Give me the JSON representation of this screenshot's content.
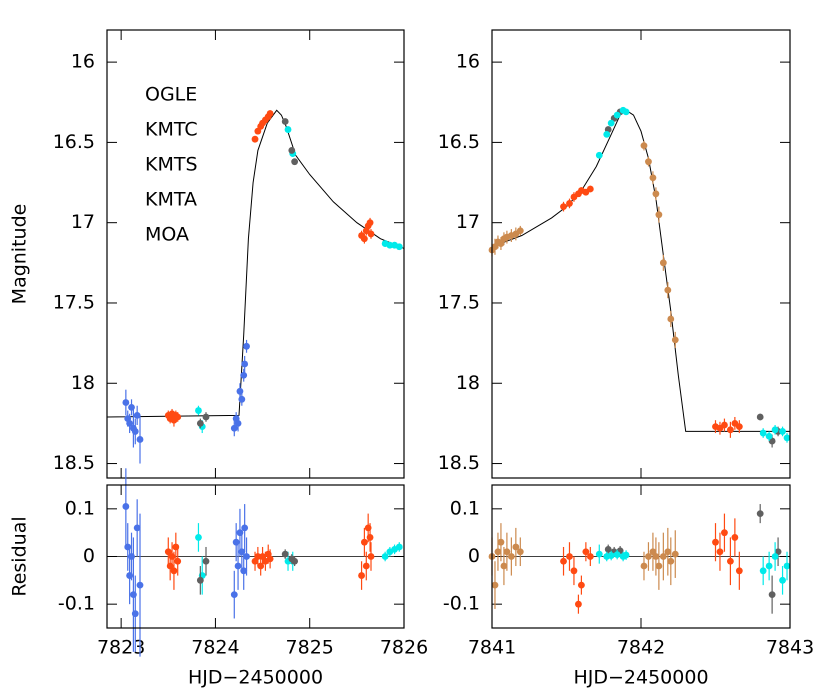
{
  "chart_data": [
    {
      "type": "scatter",
      "ylabel": "Magnitude",
      "xlim": [
        7822.85,
        7826
      ],
      "xticks": [
        7823,
        7824,
        7825,
        7826
      ],
      "xtick_labels": false,
      "ylim": [
        18.59,
        15.8
      ],
      "yticks": [
        16,
        16.5,
        17,
        17.5,
        18,
        18.5
      ],
      "legend": {
        "position": "upper left",
        "entries": [
          {
            "name": "OGLE",
            "color": "#00eaea"
          },
          {
            "name": "KMTC",
            "color": "#606060"
          },
          {
            "name": "KMTS",
            "color": "#ff4a12"
          },
          {
            "name": "KMTA",
            "color": "#4a72e8"
          },
          {
            "name": "MOA",
            "color": "#cc8a4e"
          }
        ]
      },
      "model": {
        "color": "#000000",
        "x": [
          7822.85,
          7824.25,
          7824.3,
          7824.35,
          7824.4,
          7824.45,
          7824.55,
          7824.65,
          7824.7,
          7824.75,
          7824.85,
          7825.0,
          7825.25,
          7825.5,
          7825.75,
          7826
        ],
        "values": [
          18.21,
          18.2,
          17.7,
          17.1,
          16.75,
          16.55,
          16.38,
          16.3,
          16.33,
          16.4,
          16.58,
          16.7,
          16.87,
          17.0,
          17.1,
          17.16
        ]
      },
      "series": [
        {
          "color": "#00eaea",
          "x": [
            7823.82,
            7823.86,
            7824.77,
            7824.82,
            7825.8,
            7825.85,
            7825.9,
            7825.95
          ],
          "values": [
            18.17,
            18.27,
            16.42,
            16.57,
            17.13,
            17.14,
            17.14,
            17.15
          ],
          "errors": [
            0.03,
            0.04,
            0.02,
            0.02,
            0.02,
            0.02,
            0.02,
            0.02
          ]
        },
        {
          "color": "#606060",
          "x": [
            7823.84,
            7823.9,
            7824.74,
            7824.81,
            7824.84
          ],
          "values": [
            18.25,
            18.21,
            16.37,
            16.55,
            16.62
          ],
          "errors": [
            0.03,
            0.03,
            0.01,
            0.01,
            0.01
          ]
        },
        {
          "color": "#ff4a12",
          "x": [
            7823.5,
            7823.52,
            7823.54,
            7823.56,
            7823.58,
            7823.6,
            7824.42,
            7824.45,
            7824.48,
            7824.5,
            7824.53,
            7824.56,
            7824.58,
            7825.55,
            7825.58,
            7825.6,
            7825.62,
            7825.64,
            7825.65
          ],
          "values": [
            18.2,
            18.22,
            18.19,
            18.23,
            18.2,
            18.21,
            16.48,
            16.43,
            16.4,
            16.38,
            16.36,
            16.34,
            16.32,
            17.08,
            17.1,
            17.05,
            17.02,
            17.0,
            17.07
          ],
          "errors": [
            0.03,
            0.03,
            0.03,
            0.04,
            0.03,
            0.03,
            0.02,
            0.02,
            0.02,
            0.02,
            0.02,
            0.02,
            0.02,
            0.03,
            0.03,
            0.03,
            0.03,
            0.03,
            0.03
          ]
        },
        {
          "color": "#4a72e8",
          "x": [
            7823.05,
            7823.07,
            7823.09,
            7823.11,
            7823.13,
            7823.15,
            7823.17,
            7823.2,
            7824.2,
            7824.22,
            7824.24,
            7824.26,
            7824.28,
            7824.3,
            7824.31,
            7824.33
          ],
          "values": [
            18.12,
            18.22,
            18.25,
            18.15,
            18.28,
            18.3,
            18.2,
            18.35,
            18.28,
            18.22,
            18.25,
            18.05,
            18.1,
            17.95,
            17.88,
            17.77
          ],
          "errors": [
            0.08,
            0.05,
            0.06,
            0.05,
            0.12,
            0.08,
            0.06,
            0.15,
            0.05,
            0.04,
            0.05,
            0.05,
            0.04,
            0.04,
            0.05,
            0.04
          ]
        }
      ]
    },
    {
      "type": "scatter",
      "xlim": [
        7841,
        7843
      ],
      "xticks": [
        7841,
        7842,
        7843
      ],
      "xtick_labels": false,
      "ylim": [
        18.59,
        15.8
      ],
      "yticks": [
        16,
        16.5,
        17,
        17.5,
        18,
        18.5
      ],
      "model": {
        "color": "#000000",
        "x": [
          7841,
          7841.2,
          7841.4,
          7841.5,
          7841.6,
          7841.7,
          7841.8,
          7841.86,
          7841.9,
          7841.95,
          7842.0,
          7842.05,
          7842.1,
          7842.15,
          7842.2,
          7842.25,
          7842.3,
          7843
        ],
        "values": [
          17.15,
          17.08,
          16.97,
          16.9,
          16.8,
          16.65,
          16.45,
          16.33,
          16.3,
          16.33,
          16.43,
          16.6,
          16.85,
          17.2,
          17.55,
          17.95,
          18.3,
          18.3
        ]
      },
      "series": [
        {
          "color": "#cc8a4e",
          "x": [
            7841.0,
            7841.02,
            7841.04,
            7841.06,
            7841.08,
            7841.1,
            7841.13,
            7841.16,
            7841.19,
            7842.02,
            7842.05,
            7842.08,
            7842.1,
            7842.12,
            7842.15,
            7842.18,
            7842.2,
            7842.23
          ],
          "values": [
            17.17,
            17.15,
            17.12,
            17.13,
            17.1,
            17.09,
            17.08,
            17.07,
            17.05,
            16.52,
            16.62,
            16.72,
            16.82,
            16.95,
            17.25,
            17.42,
            17.6,
            17.73
          ],
          "errors": [
            0.04,
            0.05,
            0.04,
            0.04,
            0.04,
            0.04,
            0.04,
            0.04,
            0.03,
            0.03,
            0.03,
            0.04,
            0.04,
            0.05,
            0.05,
            0.05,
            0.05,
            0.05
          ]
        },
        {
          "color": "#ff4a12",
          "x": [
            7841.48,
            7841.52,
            7841.55,
            7841.58,
            7841.6,
            7841.63,
            7841.66,
            7842.5,
            7842.53,
            7842.56,
            7842.6,
            7842.63,
            7842.66
          ],
          "values": [
            16.9,
            16.88,
            16.84,
            16.82,
            16.8,
            16.81,
            16.79,
            18.27,
            18.28,
            18.26,
            18.29,
            18.25,
            18.27
          ],
          "errors": [
            0.03,
            0.03,
            0.03,
            0.02,
            0.02,
            0.02,
            0.02,
            0.04,
            0.04,
            0.04,
            0.05,
            0.04,
            0.04
          ]
        },
        {
          "color": "#606060",
          "x": [
            7841.78,
            7841.82,
            7841.86,
            7842.8,
            7842.88,
            7842.92
          ],
          "values": [
            16.42,
            16.35,
            16.31,
            18.21,
            18.36,
            18.3
          ],
          "errors": [
            0.01,
            0.01,
            0.01,
            0.02,
            0.04,
            0.03
          ]
        },
        {
          "color": "#00eaea",
          "x": [
            7841.72,
            7841.77,
            7841.8,
            7841.84,
            7841.88,
            7841.9,
            7842.82,
            7842.86,
            7842.9,
            7842.95,
            7842.98
          ],
          "values": [
            16.58,
            16.45,
            16.38,
            16.33,
            16.3,
            16.31,
            18.31,
            18.33,
            18.29,
            18.3,
            18.34
          ],
          "errors": [
            0.02,
            0.01,
            0.01,
            0.01,
            0.01,
            0.01,
            0.03,
            0.03,
            0.03,
            0.03,
            0.03
          ]
        }
      ]
    },
    {
      "type": "scatter",
      "ylabel": "Residual",
      "xlabel": "HJD−2450000",
      "xlim": [
        7822.85,
        7826
      ],
      "xticks": [
        7823,
        7824,
        7825,
        7826
      ],
      "xtick_labels": true,
      "ylim": [
        -0.15,
        0.15
      ],
      "yticks": [
        0.1,
        0,
        -0.1
      ],
      "zero_line": 0,
      "series": [
        {
          "color": "#00eaea",
          "x": [
            7823.82,
            7823.86,
            7824.77,
            7824.82,
            7825.8,
            7825.85,
            7825.9,
            7825.95
          ],
          "values": [
            0.04,
            -0.04,
            -0.01,
            -0.01,
            0.0,
            0.01,
            0.015,
            0.02
          ],
          "errors": [
            0.03,
            0.04,
            0.02,
            0.02,
            0.01,
            0.01,
            0.01,
            0.01
          ]
        },
        {
          "color": "#606060",
          "x": [
            7823.84,
            7823.9,
            7824.74,
            7824.81,
            7824.84
          ],
          "values": [
            -0.05,
            -0.01,
            0.005,
            -0.005,
            -0.01
          ],
          "errors": [
            0.03,
            0.03,
            0.01,
            0.01,
            0.01
          ]
        },
        {
          "color": "#ff4a12",
          "x": [
            7823.5,
            7823.52,
            7823.54,
            7823.56,
            7823.58,
            7823.6,
            7824.42,
            7824.45,
            7824.48,
            7824.5,
            7824.53,
            7824.56,
            7824.58,
            7825.55,
            7825.58,
            7825.6,
            7825.62,
            7825.64,
            7825.65
          ],
          "values": [
            0.01,
            -0.02,
            0.0,
            -0.03,
            0.02,
            -0.01,
            -0.01,
            0.0,
            -0.02,
            0.0,
            -0.01,
            0.005,
            -0.005,
            -0.04,
            0.03,
            -0.02,
            0.06,
            0.04,
            0.0
          ],
          "errors": [
            0.03,
            0.03,
            0.03,
            0.04,
            0.03,
            0.03,
            0.02,
            0.02,
            0.02,
            0.02,
            0.02,
            0.02,
            0.02,
            0.03,
            0.03,
            0.03,
            0.03,
            0.03,
            0.03
          ]
        },
        {
          "color": "#4a72e8",
          "x": [
            7823.05,
            7823.07,
            7823.09,
            7823.11,
            7823.13,
            7823.15,
            7823.17,
            7823.2,
            7824.2,
            7824.22,
            7824.24,
            7824.26,
            7824.28,
            7824.3,
            7824.31,
            7824.33
          ],
          "values": [
            0.105,
            0.02,
            -0.04,
            0.0,
            -0.08,
            -0.12,
            0.06,
            -0.06,
            -0.08,
            0.03,
            -0.02,
            0.05,
            0.01,
            -0.03,
            0.06,
            0.0
          ],
          "errors": [
            0.08,
            0.05,
            0.06,
            0.05,
            0.12,
            0.08,
            0.06,
            0.15,
            0.05,
            0.04,
            0.05,
            0.05,
            0.04,
            0.04,
            0.05,
            0.04
          ]
        }
      ]
    },
    {
      "type": "scatter",
      "xlabel": "HJD−2450000",
      "xlim": [
        7841,
        7843
      ],
      "xticks": [
        7841,
        7842,
        7843
      ],
      "xtick_labels": true,
      "ylim": [
        -0.15,
        0.15
      ],
      "yticks": [
        0.1,
        0,
        -0.1
      ],
      "zero_line": 0,
      "series": [
        {
          "color": "#cc8a4e",
          "x": [
            7841.0,
            7841.02,
            7841.04,
            7841.06,
            7841.08,
            7841.1,
            7841.13,
            7841.16,
            7841.19,
            7842.02,
            7842.05,
            7842.08,
            7842.1,
            7842.12,
            7842.15,
            7842.18,
            7842.2,
            7842.23
          ],
          "values": [
            0.0,
            -0.06,
            0.01,
            0.03,
            -0.02,
            0.01,
            0.0,
            0.02,
            0.01,
            -0.02,
            0.0,
            0.01,
            0.0,
            -0.02,
            0.0,
            0.01,
            -0.01,
            0.005
          ],
          "errors": [
            0.04,
            0.05,
            0.04,
            0.04,
            0.04,
            0.04,
            0.04,
            0.04,
            0.03,
            0.03,
            0.03,
            0.04,
            0.04,
            0.05,
            0.05,
            0.05,
            0.05,
            0.05
          ]
        },
        {
          "color": "#ff4a12",
          "x": [
            7841.48,
            7841.52,
            7841.55,
            7841.58,
            7841.6,
            7841.63,
            7841.66,
            7842.5,
            7842.53,
            7842.56,
            7842.6,
            7842.63,
            7842.66
          ],
          "values": [
            -0.01,
            0.0,
            -0.03,
            -0.1,
            -0.06,
            0.01,
            0.0,
            0.03,
            0.01,
            0.05,
            -0.01,
            0.04,
            -0.03
          ],
          "errors": [
            0.03,
            0.03,
            0.03,
            0.02,
            0.02,
            0.02,
            0.02,
            0.04,
            0.04,
            0.04,
            0.05,
            0.04,
            0.04
          ]
        },
        {
          "color": "#606060",
          "x": [
            7841.78,
            7841.82,
            7841.86,
            7842.8,
            7842.88,
            7842.92
          ],
          "values": [
            0.015,
            0.01,
            0.012,
            0.09,
            -0.08,
            0.01
          ],
          "errors": [
            0.01,
            0.01,
            0.01,
            0.02,
            0.04,
            0.03
          ]
        },
        {
          "color": "#00eaea",
          "x": [
            7841.72,
            7841.77,
            7841.8,
            7841.84,
            7841.88,
            7841.9,
            7842.82,
            7842.86,
            7842.9,
            7842.95,
            7842.98
          ],
          "values": [
            0.005,
            0.0,
            0.002,
            0.004,
            0.0,
            0.003,
            -0.03,
            -0.02,
            0.0,
            -0.05,
            -0.02
          ],
          "errors": [
            0.02,
            0.01,
            0.01,
            0.01,
            0.01,
            0.01,
            0.03,
            0.03,
            0.03,
            0.03,
            0.03
          ]
        }
      ]
    }
  ]
}
